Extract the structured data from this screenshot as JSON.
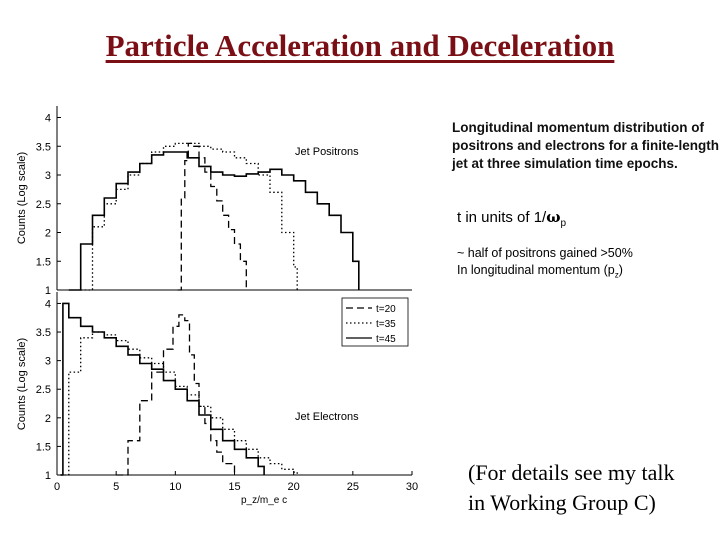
{
  "title": "Particle Acceleration and Deceleration",
  "description": "Longitudinal momentum distribution of positrons and electrons for a finite-length jet at three simulation time epochs.",
  "time_units": {
    "prefix": "t in units of 1/",
    "symbol": "ω",
    "subscript": "p"
  },
  "gain_note": {
    "line1": "~ half of positrons gained >50%",
    "line2_prefix": "In longitudinal momentum (p",
    "line2_sub": "z",
    "line2_suffix": ")"
  },
  "talk_note": {
    "line1": "(For details see my talk",
    "line2": "in Working Group C)"
  },
  "chart_data": [
    {
      "type": "line",
      "panel": "top",
      "annotation": "Jet Positrons",
      "ylabel": "Counts (Log scale)",
      "xlim": [
        0,
        30
      ],
      "ylim": [
        1,
        4.2
      ],
      "yticks": [
        1,
        1.5,
        2,
        2.5,
        3,
        3.5,
        4
      ],
      "ytick_labels": [
        "1",
        "1.5",
        "2",
        "2.5",
        "3",
        "3.5",
        "4"
      ],
      "grid": false,
      "series": [
        {
          "name": "t=20",
          "style": "dashed",
          "x": [
            10.2,
            10.5,
            10.8,
            11.1,
            11.5,
            12,
            12.5,
            13,
            13.5,
            14,
            14.5,
            15,
            15.5,
            16
          ],
          "y": [
            1,
            2.6,
            3.25,
            3.55,
            3.5,
            3.3,
            3.05,
            2.8,
            2.55,
            2.3,
            2.05,
            1.8,
            1.5,
            1
          ]
        },
        {
          "name": "t=35",
          "style": "dotted",
          "x": [
            2,
            3,
            4,
            5,
            6,
            7,
            8,
            9,
            10,
            11,
            12,
            13,
            14,
            15,
            16,
            17,
            18,
            19,
            20,
            20.3
          ],
          "y": [
            1,
            2.1,
            2.5,
            2.75,
            3.0,
            3.2,
            3.4,
            3.5,
            3.55,
            3.55,
            3.5,
            3.45,
            3.4,
            3.3,
            3.2,
            3.0,
            2.7,
            2.0,
            1.4,
            1
          ]
        },
        {
          "name": "t=45",
          "style": "solid",
          "x": [
            1,
            2,
            3,
            4,
            5,
            6,
            7,
            8,
            9,
            10,
            11,
            12,
            13,
            14,
            15,
            16,
            17,
            18,
            19,
            20,
            21,
            22,
            23,
            24,
            25,
            25.5
          ],
          "y": [
            1,
            1.8,
            2.3,
            2.6,
            2.85,
            3.05,
            3.2,
            3.35,
            3.4,
            3.4,
            3.3,
            3.15,
            3.05,
            3.0,
            2.98,
            3.02,
            3.05,
            3.1,
            3.0,
            2.9,
            2.7,
            2.5,
            2.3,
            2.0,
            1.5,
            1
          ]
        }
      ]
    },
    {
      "type": "line",
      "panel": "bottom",
      "annotation": "Jet Electrons",
      "ylabel": "Counts (Log scale)",
      "xlabel": "p_z/m_e c",
      "xlim": [
        0,
        30
      ],
      "ylim": [
        1,
        4.2
      ],
      "xticks": [
        0,
        5,
        10,
        15,
        20,
        25,
        30
      ],
      "xtick_labels": [
        "0",
        "5",
        "10",
        "15",
        "20",
        "25",
        "30"
      ],
      "yticks": [
        1,
        1.5,
        2,
        2.5,
        3,
        3.5,
        4
      ],
      "ytick_labels": [
        "1",
        "1.5",
        "2",
        "2.5",
        "3",
        "3.5",
        "4"
      ],
      "legend": {
        "placement": "top-right",
        "labels": [
          "t=20",
          "t=35",
          "t=45"
        ]
      },
      "grid": false,
      "series": [
        {
          "name": "t=20",
          "style": "dashed",
          "x": [
            5,
            6,
            7,
            8,
            9,
            9.8,
            10.3,
            10.8,
            11.2,
            11.6,
            12,
            12.5,
            13,
            13.5,
            14,
            15
          ],
          "y": [
            1,
            1.6,
            2.3,
            2.8,
            3.2,
            3.6,
            3.8,
            3.7,
            3.1,
            2.6,
            2.2,
            1.9,
            1.6,
            1.4,
            1.2,
            1
          ]
        },
        {
          "name": "t=35",
          "style": "dotted",
          "x": [
            0.3,
            1,
            2,
            3,
            4,
            5,
            6,
            7,
            8,
            9,
            10,
            11,
            12,
            13,
            14,
            15,
            16,
            17,
            18,
            19,
            20,
            20.3
          ],
          "y": [
            1,
            2.8,
            3.4,
            3.5,
            3.45,
            3.35,
            3.2,
            3.05,
            2.95,
            2.8,
            2.55,
            2.4,
            2.2,
            2.0,
            1.8,
            1.6,
            1.45,
            1.3,
            1.2,
            1.1,
            1.05,
            1
          ]
        },
        {
          "name": "t=45",
          "style": "solid",
          "x": [
            0.3,
            0.5,
            1,
            2,
            3,
            4,
            5,
            6,
            7,
            8,
            9,
            10,
            11,
            12,
            13,
            14,
            15,
            16,
            17,
            17.5
          ],
          "y": [
            1,
            4.0,
            3.75,
            3.6,
            3.5,
            3.4,
            3.25,
            3.1,
            2.95,
            2.85,
            2.65,
            2.5,
            2.3,
            2.05,
            1.8,
            1.6,
            1.45,
            1.3,
            1.15,
            1
          ]
        }
      ]
    }
  ]
}
